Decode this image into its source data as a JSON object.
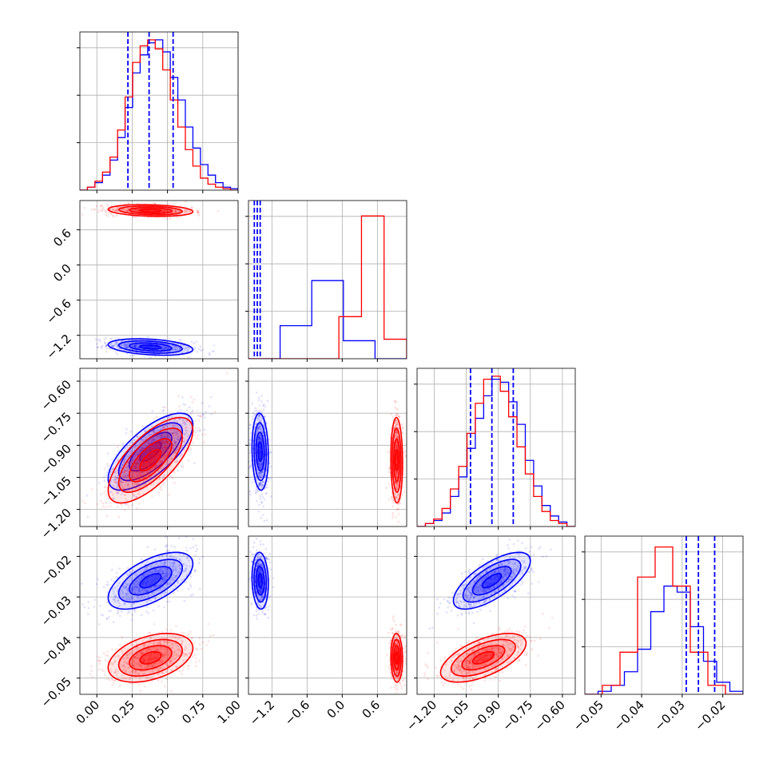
{
  "chart_data": {
    "type": "corner",
    "colors": {
      "series_a": "#0000ff",
      "series_b": "#ff0000"
    },
    "grid": true,
    "dimensions": [
      {
        "range": [
          -0.12,
          1.0
        ],
        "ticks": [
          0.0,
          0.25,
          0.5,
          0.75,
          1.0
        ],
        "tick_labels": [
          "0.00",
          "0.25",
          "0.50",
          "0.75",
          "1.00"
        ]
      },
      {
        "range": [
          -1.6,
          1.1
        ],
        "ticks": [
          -1.2,
          -0.6,
          0.0,
          0.6
        ],
        "tick_labels": [
          "−1.2",
          "−0.6",
          "0.0",
          "0.6"
        ]
      },
      {
        "range": [
          -1.28,
          -0.54
        ],
        "ticks": [
          -1.2,
          -1.05,
          -0.9,
          -0.75,
          -0.6
        ],
        "tick_labels": [
          "−1.20",
          "−1.05",
          "−0.90",
          "−0.75",
          "−0.60"
        ]
      },
      {
        "range": [
          -0.054,
          -0.015
        ],
        "ticks": [
          -0.05,
          -0.04,
          -0.03,
          -0.02
        ],
        "tick_labels": [
          "−0.05",
          "−0.04",
          "−0.03",
          "−0.02"
        ]
      }
    ],
    "series": [
      {
        "color": "blue",
        "mean": [
          0.38,
          -1.4,
          -0.93,
          -0.026
        ],
        "sd": [
          0.15,
          0.07,
          0.09,
          0.0035
        ],
        "corr": [
          [
            1.0,
            -0.3,
            0.7,
            0.6
          ],
          [
            -0.3,
            1.0,
            -0.1,
            -0.1
          ],
          [
            0.7,
            -0.1,
            1.0,
            0.7
          ],
          [
            0.6,
            -0.1,
            0.7,
            1.0
          ]
        ],
        "quantiles": [
          [
            0.22,
            0.37,
            0.54
          ],
          [
            -1.5,
            -1.45,
            -1.4
          ],
          [
            -1.03,
            -0.93,
            -0.83
          ],
          [
            -0.029,
            -0.026,
            -0.022
          ]
        ],
        "histograms": [
          [
            0.0,
            0.02,
            0.05,
            0.1,
            0.2,
            0.35,
            0.55,
            0.78,
            0.9,
            0.98,
            1.0,
            0.92,
            0.75,
            0.6,
            0.42,
            0.28,
            0.17,
            0.1,
            0.05,
            0.02,
            0.01
          ],
          [
            0.0,
            0.22,
            0.52,
            0.12,
            0.0
          ],
          [
            0.0,
            0.02,
            0.04,
            0.09,
            0.2,
            0.33,
            0.52,
            0.72,
            0.87,
            0.98,
            0.96,
            0.83,
            0.68,
            0.44,
            0.27,
            0.14,
            0.07,
            0.03,
            0.0
          ],
          [
            0.0,
            0.02,
            0.06,
            0.15,
            0.3,
            0.55,
            0.72,
            0.68,
            0.45,
            0.22,
            0.08,
            0.02
          ]
        ]
      },
      {
        "color": "red",
        "mean": [
          0.38,
          0.93,
          -0.97,
          -0.045
        ],
        "sd": [
          0.15,
          0.05,
          0.1,
          0.003
        ],
        "corr": [
          [
            1.0,
            -0.2,
            0.7,
            0.4
          ],
          [
            -0.2,
            1.0,
            -0.05,
            -0.05
          ],
          [
            0.7,
            -0.05,
            1.0,
            0.6
          ],
          [
            0.4,
            -0.05,
            0.6,
            1.0
          ]
        ],
        "histograms": [
          [
            0.0,
            0.02,
            0.06,
            0.12,
            0.22,
            0.4,
            0.62,
            0.85,
            0.96,
            1.0,
            0.94,
            0.8,
            0.6,
            0.42,
            0.27,
            0.16,
            0.08,
            0.04,
            0.02,
            0.01,
            0.0
          ],
          [
            0.0,
            0.0,
            0.0,
            0.0,
            0.28,
            0.95,
            0.13
          ],
          [
            0.0,
            0.02,
            0.05,
            0.12,
            0.25,
            0.4,
            0.62,
            0.82,
            0.98,
            1.0,
            0.9,
            0.73,
            0.53,
            0.35,
            0.2,
            0.1,
            0.04,
            0.02,
            0.0
          ],
          [
            0.0,
            0.06,
            0.28,
            0.78,
            0.98,
            0.72,
            0.28,
            0.06,
            0.0
          ]
        ]
      }
    ]
  }
}
